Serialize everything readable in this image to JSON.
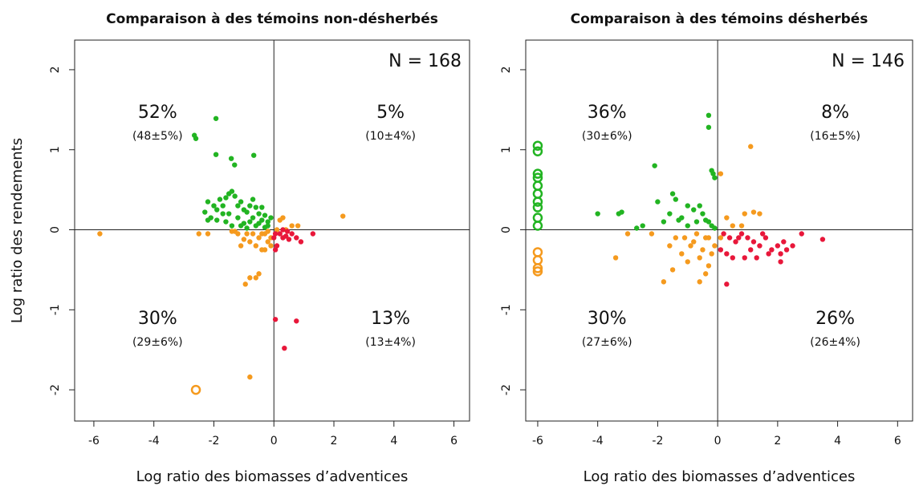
{
  "chart_data": [
    {
      "type": "scatter",
      "title": "Comparaison à des témoins non-désherbés",
      "xlabel": "Log ratio des biomasses d’adventices",
      "ylabel": "Log ratio des rendements",
      "n_label": "N = 168",
      "xlim": [
        -6.64,
        6.52
      ],
      "ylim": [
        -2.39,
        2.37
      ],
      "xticks": [
        -6,
        -4,
        -2,
        0,
        2,
        4,
        6
      ],
      "yticks": [
        -2,
        -1,
        0,
        1,
        2
      ],
      "reference_lines": {
        "x": 0,
        "y": 0
      },
      "annotations": [
        {
          "text": "52%",
          "sub": "(48±5%)",
          "quadrant": "top-left"
        },
        {
          "text": "5%",
          "sub": "(10±4%)",
          "quadrant": "top-right"
        },
        {
          "text": "30%",
          "sub": "(29±6%)",
          "quadrant": "bottom-left"
        },
        {
          "text": "13%",
          "sub": "(13±4%)",
          "quadrant": "bottom-right"
        }
      ],
      "series": [
        {
          "color": "#22b422",
          "marker": "filled",
          "x": [
            -2.65,
            -2.6,
            -1.93,
            -1.93,
            -1.42,
            -1.31,
            -0.67,
            -2.2,
            -2.0,
            -1.9,
            -1.8,
            -1.7,
            -1.6,
            -1.5,
            -1.4,
            -1.3,
            -1.2,
            -1.1,
            -1.0,
            -0.9,
            -0.8,
            -0.7,
            -0.6,
            -0.5,
            -0.4,
            -0.3,
            -0.2,
            -0.1,
            -1.9,
            -1.6,
            -1.4,
            -1.2,
            -1.0,
            -0.8,
            -0.6,
            -0.5,
            -0.3,
            -2.3,
            -2.1,
            -1.5,
            -1.1,
            -0.9,
            -0.4,
            -0.2,
            -2.2,
            -1.7,
            -0.7
          ],
          "y": [
            1.18,
            1.14,
            1.39,
            0.94,
            0.89,
            0.81,
            0.93,
            0.35,
            0.3,
            0.25,
            0.38,
            0.2,
            0.4,
            0.45,
            0.48,
            0.42,
            0.3,
            0.35,
            0.25,
            0.22,
            0.3,
            0.15,
            0.28,
            0.2,
            0.12,
            0.18,
            0.1,
            0.15,
            0.12,
            0.1,
            0.05,
            0.15,
            0.08,
            0.1,
            0.05,
            0.08,
            0.03,
            0.22,
            0.15,
            0.2,
            0.05,
            0.02,
            0.28,
            0.05,
            0.12,
            0.3,
            0.38
          ]
        },
        {
          "color": "#f59a1e",
          "marker": "filled",
          "x": [
            -5.8,
            -2.5,
            -2.2,
            2.3,
            0.3,
            0.6,
            0.8,
            0.4,
            -0.3,
            -0.4,
            -0.6,
            -0.8,
            -1.0,
            -1.2,
            -1.4,
            -0.9,
            -0.7,
            -0.5,
            -0.2,
            -0.1,
            -1.1,
            -0.6,
            -0.8,
            -0.5,
            -0.95,
            -0.8,
            -1.3,
            -0.4,
            0.1,
            0.2,
            -0.3,
            -0.2,
            -0.1
          ],
          "y": [
            -0.05,
            -0.05,
            -0.05,
            0.17,
            0.15,
            0.05,
            0.05,
            0.0,
            -0.25,
            -0.25,
            -0.2,
            -0.15,
            -0.12,
            -0.05,
            -0.02,
            -0.05,
            -0.05,
            -0.1,
            -0.15,
            -0.2,
            -0.2,
            -0.6,
            -0.6,
            -0.55,
            -0.68,
            -1.84,
            -0.02,
            -0.05,
            0.0,
            0.12,
            -0.05,
            -0.02,
            -0.1
          ]
        },
        {
          "color": "#f59a1e",
          "marker": "open",
          "x": [
            -2.6
          ],
          "y": [
            -2.0
          ]
        },
        {
          "color": "#e8173a",
          "marker": "filled",
          "x": [
            0.05,
            0.2,
            0.3,
            0.45,
            0.5,
            0.6,
            0.75,
            0.9,
            1.3,
            0.1,
            0.05,
            0.3,
            0.05,
            0.75,
            0.35,
            0.0,
            0.4
          ],
          "y": [
            -0.05,
            -0.05,
            -0.1,
            -0.02,
            -0.12,
            -0.05,
            -0.1,
            -0.15,
            -0.05,
            -0.2,
            -0.25,
            0.0,
            -1.12,
            -1.14,
            -1.48,
            -0.1,
            -0.08
          ]
        }
      ]
    },
    {
      "type": "scatter",
      "title": "Comparaison à des témoins désherbés",
      "xlabel": "Log ratio des biomasses d’adventices",
      "n_label": "N = 146",
      "xlim": [
        -6.4,
        6.5
      ],
      "ylim": [
        -2.39,
        2.37
      ],
      "xticks": [
        -6,
        -4,
        -2,
        0,
        2,
        4,
        6
      ],
      "yticks": [
        -2,
        -1,
        0,
        1,
        2
      ],
      "reference_lines": {
        "x": 0,
        "y": 0
      },
      "annotations": [
        {
          "text": "36%",
          "sub": "(30±6%)",
          "quadrant": "top-left"
        },
        {
          "text": "8%",
          "sub": "(16±5%)",
          "quadrant": "top-right"
        },
        {
          "text": "30%",
          "sub": "(27±6%)",
          "quadrant": "bottom-left"
        },
        {
          "text": "26%",
          "sub": "(26±4%)",
          "quadrant": "bottom-right"
        }
      ],
      "series": [
        {
          "color": "#22b422",
          "marker": "open",
          "x": [
            -6,
            -6,
            -6,
            -6,
            -6,
            -6,
            -6,
            -6,
            -6,
            -6
          ],
          "y": [
            1.05,
            0.98,
            0.7,
            0.65,
            0.55,
            0.45,
            0.35,
            0.28,
            0.15,
            0.05
          ]
        },
        {
          "color": "#f59a1e",
          "marker": "open",
          "x": [
            -6,
            -6,
            -6,
            -6
          ],
          "y": [
            -0.28,
            -0.38,
            -0.48,
            -0.52
          ]
        },
        {
          "color": "#22b422",
          "marker": "filled",
          "x": [
            -2.1,
            -0.3,
            -0.3,
            -0.2,
            -0.15,
            -0.1,
            -4.0,
            -3.3,
            -3.2,
            -2.0,
            -1.5,
            -1.4,
            -1.0,
            -0.8,
            -0.6,
            -0.5,
            -0.4,
            -0.3,
            -0.2,
            -1.2,
            -1.6,
            -1.8,
            -2.5,
            -2.7,
            -1.0,
            -0.7,
            -0.1,
            -1.3
          ],
          "y": [
            0.8,
            1.43,
            1.28,
            0.74,
            0.7,
            0.65,
            0.2,
            0.2,
            0.22,
            0.35,
            0.45,
            0.38,
            0.3,
            0.25,
            0.3,
            0.2,
            0.12,
            0.1,
            0.05,
            0.15,
            0.2,
            0.1,
            0.05,
            0.02,
            0.05,
            0.1,
            0.02,
            0.12
          ]
        },
        {
          "color": "#f59a1e",
          "marker": "filled",
          "x": [
            1.1,
            0.1,
            0.9,
            1.2,
            1.4,
            0.8,
            0.5,
            -3.4,
            -1.8,
            -1.5,
            -0.6,
            -0.4,
            -1.0,
            -1.2,
            -0.9,
            -0.8,
            -0.5,
            -0.3,
            -0.2,
            -0.1,
            -1.4,
            -0.7,
            -2.2,
            -3.0,
            -1.1,
            -0.6,
            -0.3,
            0.1,
            0.3,
            -1.6,
            -0.4
          ],
          "y": [
            1.04,
            0.7,
            0.2,
            0.22,
            0.2,
            0.05,
            0.05,
            -0.35,
            -0.65,
            -0.5,
            -0.65,
            -0.55,
            -0.4,
            -0.3,
            -0.2,
            -0.15,
            -0.25,
            -0.1,
            -0.3,
            -0.2,
            -0.1,
            -0.05,
            -0.05,
            -0.05,
            -0.1,
            -0.35,
            -0.45,
            -0.1,
            0.15,
            -0.2,
            -0.1
          ]
        },
        {
          "color": "#e8173a",
          "marker": "filled",
          "x": [
            0.2,
            0.4,
            0.6,
            0.8,
            1.0,
            1.2,
            1.4,
            1.6,
            1.8,
            2.0,
            2.1,
            2.2,
            2.3,
            2.5,
            2.8,
            3.5,
            0.3,
            0.5,
            0.9,
            1.3,
            1.5,
            0.1,
            0.3,
            1.7,
            2.1,
            1.1,
            0.7
          ],
          "y": [
            -0.05,
            -0.1,
            -0.15,
            -0.05,
            -0.1,
            -0.15,
            -0.2,
            -0.1,
            -0.25,
            -0.2,
            -0.3,
            -0.15,
            -0.25,
            -0.2,
            -0.05,
            -0.12,
            -0.3,
            -0.35,
            -0.35,
            -0.35,
            -0.05,
            -0.25,
            -0.68,
            -0.3,
            -0.4,
            -0.25,
            -0.1
          ]
        }
      ]
    }
  ]
}
